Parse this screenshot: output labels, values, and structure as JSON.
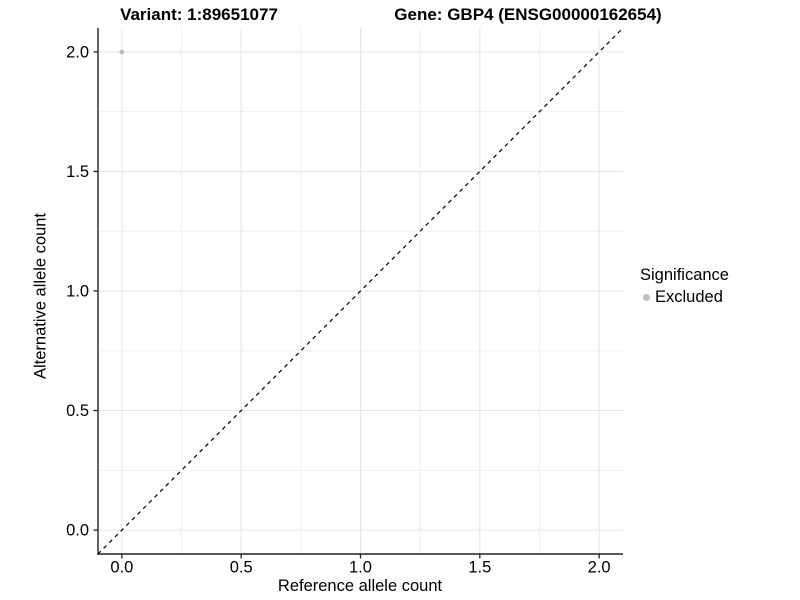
{
  "chart_data": {
    "type": "scatter",
    "titles": {
      "left": "Variant: 1:89651077",
      "right": "Gene: GBP4 (ENSG00000162654)"
    },
    "xlabel": "Reference allele count",
    "ylabel": "Alternative allele count",
    "xlim": [
      -0.1,
      2.1
    ],
    "ylim": [
      -0.1,
      2.1
    ],
    "x_ticks": {
      "values": [
        0,
        0.5,
        1,
        1.5,
        2
      ],
      "labels": [
        "0.0",
        "0.5",
        "1.0",
        "1.5",
        "2.0"
      ]
    },
    "y_ticks": {
      "values": [
        0,
        0.5,
        1,
        1.5,
        2
      ],
      "labels": [
        "0.0",
        "0.5",
        "1.0",
        "1.5",
        "2.0"
      ]
    },
    "grid": {
      "major": true,
      "minor": true
    },
    "reference_line": {
      "type": "identity",
      "slope": 1,
      "intercept": 0,
      "style": "dashed",
      "color": "#000000"
    },
    "series": [
      {
        "name": "Excluded",
        "color": "#bdbdbd",
        "points": [
          {
            "x": 0,
            "y": 2
          }
        ]
      }
    ],
    "legend": {
      "title": "Significance",
      "position": "right",
      "entries": [
        {
          "label": "Excluded",
          "color": "#bdbdbd",
          "marker": "circle"
        }
      ]
    },
    "colors": {
      "background": "#ffffff",
      "grid_major": "#e5e5e5",
      "grid_minor": "#f0f0f0",
      "axis_line": "#222222",
      "tick_mark": "#222222",
      "text": "#000000"
    }
  }
}
